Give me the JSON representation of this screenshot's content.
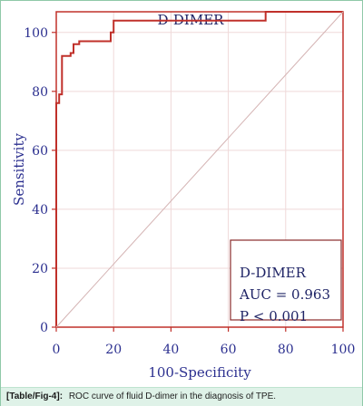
{
  "chart_data": {
    "type": "line",
    "title": "D-DIMER",
    "xlabel": "100-Specificity",
    "ylabel": "Sensitivity",
    "xlim": [
      0,
      100
    ],
    "ylim": [
      0,
      107
    ],
    "x_ticks": [
      0,
      20,
      40,
      60,
      80,
      100
    ],
    "y_ticks": [
      0,
      20,
      40,
      60,
      80,
      100
    ],
    "grid": true,
    "series": [
      {
        "type": "step",
        "x": [
          0,
          0,
          1,
          1,
          2,
          2,
          5,
          5,
          6,
          6,
          8,
          8,
          19,
          19,
          20,
          20,
          73,
          73,
          100
        ],
        "y": [
          0,
          76,
          76,
          79,
          79,
          92,
          92,
          93,
          93,
          96,
          96,
          97,
          97,
          100,
          100,
          104,
          104,
          107,
          107
        ],
        "color": "#c0302a"
      },
      {
        "type": "reference",
        "x": [
          0,
          100
        ],
        "y": [
          0,
          107
        ],
        "color": "#d4b3b3"
      }
    ],
    "annotation": {
      "lines": [
        "D-DIMER",
        "AUC = 0.963",
        "P < 0.001"
      ]
    }
  },
  "caption": {
    "label": "[Table/Fig-4]:",
    "text": "ROC curve of fluid D-dimer in the diagnosis of TPE."
  }
}
